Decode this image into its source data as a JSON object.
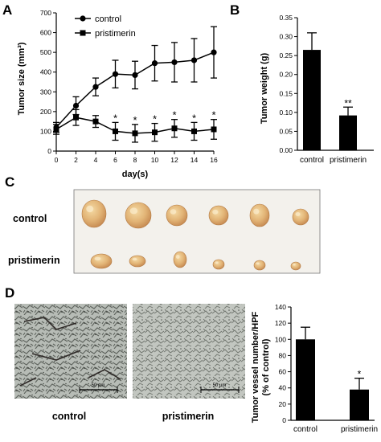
{
  "panels": {
    "a": "A",
    "b": "B",
    "c": "C",
    "d": "D"
  },
  "chart_data": [
    {
      "panel": "A",
      "type": "line",
      "xlabel": "day(s)",
      "ylabel": "Tumor size (mm³)",
      "xlim": [
        0,
        16
      ],
      "ylim": [
        0,
        700
      ],
      "xticks": [
        0,
        2,
        4,
        6,
        8,
        10,
        12,
        14,
        16
      ],
      "yticks": [
        0,
        100,
        200,
        300,
        400,
        500,
        600,
        700
      ],
      "series": [
        {
          "name": "control",
          "marker": "circle",
          "x": [
            0,
            2,
            4,
            6,
            8,
            10,
            12,
            14,
            16
          ],
          "y": [
            120,
            230,
            325,
            390,
            385,
            445,
            450,
            460,
            500
          ],
          "err": [
            25,
            45,
            45,
            70,
            70,
            90,
            100,
            110,
            130
          ]
        },
        {
          "name": "pristimerin",
          "marker": "square",
          "x": [
            0,
            2,
            4,
            6,
            8,
            10,
            12,
            14,
            16
          ],
          "y": [
            110,
            170,
            150,
            100,
            90,
            95,
            115,
            100,
            110
          ],
          "err": [
            25,
            40,
            30,
            45,
            45,
            45,
            45,
            45,
            50
          ]
        }
      ],
      "annotations": [
        {
          "x": 6,
          "text": "*"
        },
        {
          "x": 8,
          "text": "*"
        },
        {
          "x": 10,
          "text": "*"
        },
        {
          "x": 12,
          "text": "*"
        },
        {
          "x": 14,
          "text": "*"
        },
        {
          "x": 16,
          "text": "*"
        }
      ]
    },
    {
      "panel": "B",
      "type": "bar",
      "ylabel": "Tumor weight (g)",
      "categories": [
        "control",
        "pristimerin"
      ],
      "values": [
        0.265,
        0.092
      ],
      "errors": [
        0.045,
        0.022
      ],
      "ylim": [
        0,
        0.35
      ],
      "yticks": [
        "0.00",
        "0.05",
        "0.10",
        "0.15",
        "0.20",
        "0.25",
        "0.30",
        "0.35"
      ],
      "annotations": [
        {
          "category": "pristimerin",
          "text": "**"
        }
      ]
    },
    {
      "panel": "D",
      "type": "bar",
      "ylabel": "Tumor vessel number/HPF",
      "ylabel2": "(% of control)",
      "categories": [
        "control",
        "pristimerin"
      ],
      "values": [
        100,
        38
      ],
      "errors": [
        15,
        14
      ],
      "ylim": [
        0,
        140
      ],
      "yticks": [
        "0",
        "20",
        "40",
        "60",
        "80",
        "100",
        "120",
        "140"
      ],
      "annotations": [
        {
          "category": "pristimerin",
          "text": "*"
        }
      ]
    }
  ],
  "photos": {
    "row_labels": [
      "control",
      "pristimerin"
    ],
    "micro_labels": [
      "control",
      "pristimerin"
    ],
    "scale_text": "50 µm"
  }
}
